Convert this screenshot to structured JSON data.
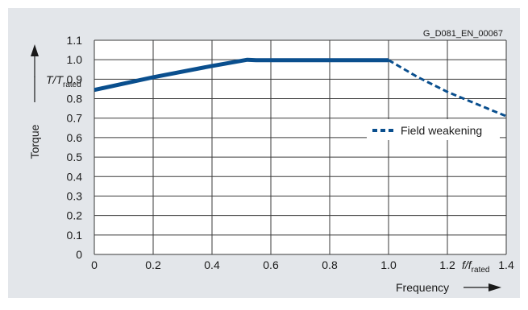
{
  "figure_code": "G_D081_EN_00067",
  "legend_label": "Field weakening",
  "chart_data": {
    "type": "line",
    "xlabel": "Frequency",
    "xlabel_ratio": {
      "main": "f/f",
      "sub": "rated"
    },
    "ylabel": "Torque",
    "ylabel_ratio": {
      "main": "T/T",
      "sub": "rated"
    },
    "xlim": [
      0,
      1.4
    ],
    "ylim": [
      0,
      1.1
    ],
    "xticks": [
      0,
      0.2,
      0.4,
      0.6,
      0.8,
      1.0,
      1.2,
      1.4
    ],
    "xtick_labels": [
      "0",
      "0.2",
      "0.4",
      "0.6",
      "0.8",
      "1.0",
      "1.2",
      "1.4"
    ],
    "yticks": [
      0,
      0.1,
      0.2,
      0.3,
      0.4,
      0.5,
      0.6,
      0.7,
      0.8,
      0.9,
      1.0,
      1.1
    ],
    "ytick_labels": [
      "0",
      "0.1",
      "0.2",
      "0.3",
      "0.4",
      "0.5",
      "0.6",
      "0.7",
      "0.8",
      "0.9",
      "1.0",
      "1.1"
    ],
    "grid": true,
    "legend_position": "right",
    "series": [
      {
        "style": "solid",
        "color": "#0a4f8e",
        "x": [
          0,
          0.2,
          0.4,
          0.52,
          0.55,
          1.0
        ],
        "y": [
          0.845,
          0.91,
          0.968,
          1.0,
          0.998,
          0.998
        ]
      },
      {
        "name": "Field weakening",
        "style": "dashed",
        "color": "#0a4f8e",
        "x": [
          1.0,
          1.1,
          1.2,
          1.3,
          1.4
        ],
        "y": [
          0.998,
          0.91,
          0.835,
          0.772,
          0.71
        ]
      }
    ]
  },
  "colors": {
    "background": "#e3e6ea",
    "plot_background": "#ffffff",
    "grid": "#3a3a3a",
    "line": "#0a4f8e"
  }
}
